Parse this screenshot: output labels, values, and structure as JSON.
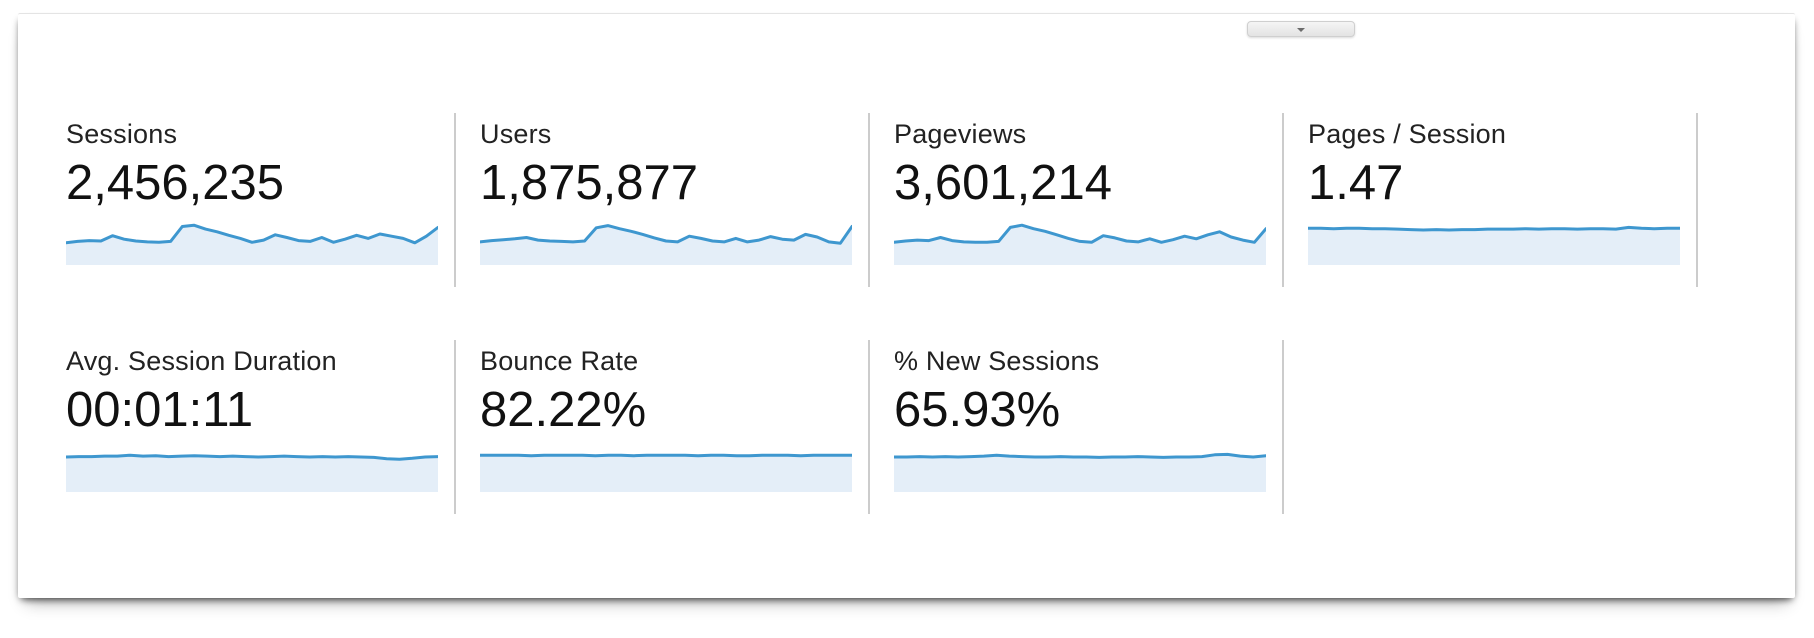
{
  "panel": {
    "collapse_button": {
      "icon": "chevron-down"
    }
  },
  "colors": {
    "spark_line": "#3e97cf",
    "spark_fill": "#e4eef8",
    "divider": "#cccccc",
    "label_text": "#222222",
    "value_text": "#111111"
  },
  "cards": [
    {
      "label": "Sessions",
      "value": "2,456,235"
    },
    {
      "label": "Users",
      "value": "1,875,877"
    },
    {
      "label": "Pageviews",
      "value": "3,601,214"
    },
    {
      "label": "Pages / Session",
      "value": "1.47"
    },
    {
      "label": "Avg. Session Duration",
      "value": "00:01:11"
    },
    {
      "label": "Bounce Rate",
      "value": "82.22%"
    },
    {
      "label": "% New Sessions",
      "value": "65.93%"
    }
  ],
  "chart_data": {
    "type": "area",
    "title": "",
    "xlabel": "",
    "ylabel": "",
    "note": "GA-style sparklines; axes are unlabeled; values are normalized 0-1 heights traced from pixels (1 = top of mini-chart, 0 = baseline)",
    "legend": false,
    "grid": false,
    "series": [
      {
        "name": "Sessions",
        "values": [
          0.46,
          0.49,
          0.51,
          0.5,
          0.62,
          0.54,
          0.5,
          0.48,
          0.47,
          0.49,
          0.83,
          0.86,
          0.77,
          0.71,
          0.63,
          0.56,
          0.47,
          0.52,
          0.64,
          0.58,
          0.51,
          0.49,
          0.58,
          0.47,
          0.54,
          0.63,
          0.56,
          0.66,
          0.61,
          0.56,
          0.46,
          0.61,
          0.81
        ]
      },
      {
        "name": "Users",
        "values": [
          0.48,
          0.51,
          0.53,
          0.55,
          0.58,
          0.52,
          0.5,
          0.49,
          0.48,
          0.5,
          0.8,
          0.85,
          0.78,
          0.72,
          0.65,
          0.57,
          0.5,
          0.48,
          0.61,
          0.56,
          0.5,
          0.48,
          0.56,
          0.48,
          0.52,
          0.6,
          0.54,
          0.52,
          0.65,
          0.59,
          0.48,
          0.45,
          0.83
        ]
      },
      {
        "name": "Pageviews",
        "values": [
          0.47,
          0.5,
          0.52,
          0.51,
          0.58,
          0.51,
          0.48,
          0.47,
          0.47,
          0.49,
          0.81,
          0.86,
          0.78,
          0.72,
          0.64,
          0.56,
          0.49,
          0.47,
          0.62,
          0.57,
          0.5,
          0.48,
          0.55,
          0.47,
          0.53,
          0.61,
          0.55,
          0.64,
          0.71,
          0.59,
          0.52,
          0.47,
          0.78
        ]
      },
      {
        "name": "Pages / Session",
        "values": [
          0.79,
          0.79,
          0.78,
          0.79,
          0.79,
          0.78,
          0.78,
          0.77,
          0.76,
          0.75,
          0.76,
          0.75,
          0.76,
          0.76,
          0.77,
          0.77,
          0.77,
          0.78,
          0.77,
          0.78,
          0.78,
          0.77,
          0.78,
          0.78,
          0.77,
          0.81,
          0.79,
          0.78,
          0.79,
          0.79
        ]
      },
      {
        "name": "Avg. Session Duration",
        "values": [
          0.75,
          0.76,
          0.76,
          0.77,
          0.77,
          0.79,
          0.77,
          0.78,
          0.76,
          0.77,
          0.78,
          0.77,
          0.76,
          0.77,
          0.76,
          0.75,
          0.76,
          0.77,
          0.76,
          0.75,
          0.76,
          0.75,
          0.76,
          0.75,
          0.74,
          0.71,
          0.7,
          0.72,
          0.75,
          0.76
        ]
      },
      {
        "name": "Bounce Rate",
        "values": [
          0.79,
          0.79,
          0.79,
          0.79,
          0.78,
          0.79,
          0.79,
          0.79,
          0.79,
          0.78,
          0.79,
          0.79,
          0.78,
          0.79,
          0.79,
          0.79,
          0.79,
          0.78,
          0.79,
          0.79,
          0.78,
          0.78,
          0.79,
          0.79,
          0.79,
          0.78,
          0.79,
          0.79,
          0.79,
          0.79
        ]
      },
      {
        "name": "% New Sessions",
        "values": [
          0.75,
          0.75,
          0.76,
          0.75,
          0.76,
          0.75,
          0.76,
          0.77,
          0.79,
          0.77,
          0.76,
          0.75,
          0.75,
          0.76,
          0.75,
          0.75,
          0.74,
          0.75,
          0.75,
          0.76,
          0.75,
          0.74,
          0.75,
          0.75,
          0.76,
          0.8,
          0.81,
          0.77,
          0.75,
          0.78
        ]
      }
    ]
  }
}
